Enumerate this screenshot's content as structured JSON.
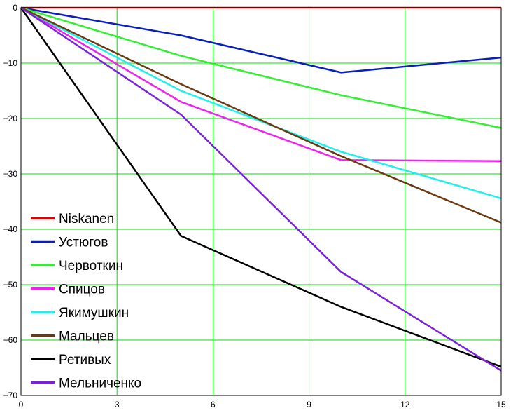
{
  "chart_data": {
    "type": "line",
    "title": "",
    "xlabel": "",
    "ylabel": "",
    "xlim": [
      0,
      15
    ],
    "ylim": [
      -70,
      0
    ],
    "x_ticks": [
      0,
      3,
      6,
      9,
      12,
      15
    ],
    "y_ticks": [
      0,
      -10,
      -20,
      -30,
      -40,
      -50,
      -60,
      -70
    ],
    "x_tick_labels": [
      "0",
      "3",
      "6",
      "9",
      "12",
      "15"
    ],
    "y_tick_labels": [
      "0",
      "−10",
      "−20",
      "−30",
      "−40",
      "−50",
      "−60",
      "−70"
    ],
    "grid": true,
    "grid_color": "#00e000",
    "legend_position": "lower-left",
    "series": [
      {
        "name": "Niskanen",
        "color": "#e00000",
        "points": [
          [
            0,
            0
          ],
          [
            15,
            0
          ]
        ]
      },
      {
        "name": "Устюгов",
        "color": "#0a1fb8",
        "points": [
          [
            0,
            0
          ],
          [
            5,
            -5
          ],
          [
            10,
            -11.7
          ],
          [
            15,
            -9
          ]
        ]
      },
      {
        "name": "Червоткин",
        "color": "#33ee33",
        "points": [
          [
            0,
            0
          ],
          [
            5,
            -8.7
          ],
          [
            10,
            -15.8
          ],
          [
            15,
            -21.7
          ]
        ]
      },
      {
        "name": "Спицов",
        "color": "#ee22ee",
        "points": [
          [
            0,
            0
          ],
          [
            5,
            -17
          ],
          [
            10,
            -27.5
          ],
          [
            15,
            -27.7
          ]
        ]
      },
      {
        "name": "Якимушкин",
        "color": "#22eeee",
        "points": [
          [
            0,
            0
          ],
          [
            5,
            -15
          ],
          [
            10,
            -26
          ],
          [
            15,
            -34.4
          ]
        ]
      },
      {
        "name": "Мальцев",
        "color": "#6b3a10",
        "points": [
          [
            0,
            0
          ],
          [
            5,
            -13.8
          ],
          [
            10,
            -26.8
          ],
          [
            15,
            -38.8
          ]
        ]
      },
      {
        "name": "Ретивых",
        "color": "#000000",
        "points": [
          [
            0,
            0
          ],
          [
            5,
            -41.2
          ],
          [
            10,
            -54
          ],
          [
            15,
            -64.8
          ]
        ]
      },
      {
        "name": "Мельниченко",
        "color": "#7a22d8",
        "points": [
          [
            0,
            0
          ],
          [
            5,
            -19.3
          ],
          [
            10,
            -47.7
          ],
          [
            15,
            -65.5
          ]
        ]
      }
    ]
  }
}
